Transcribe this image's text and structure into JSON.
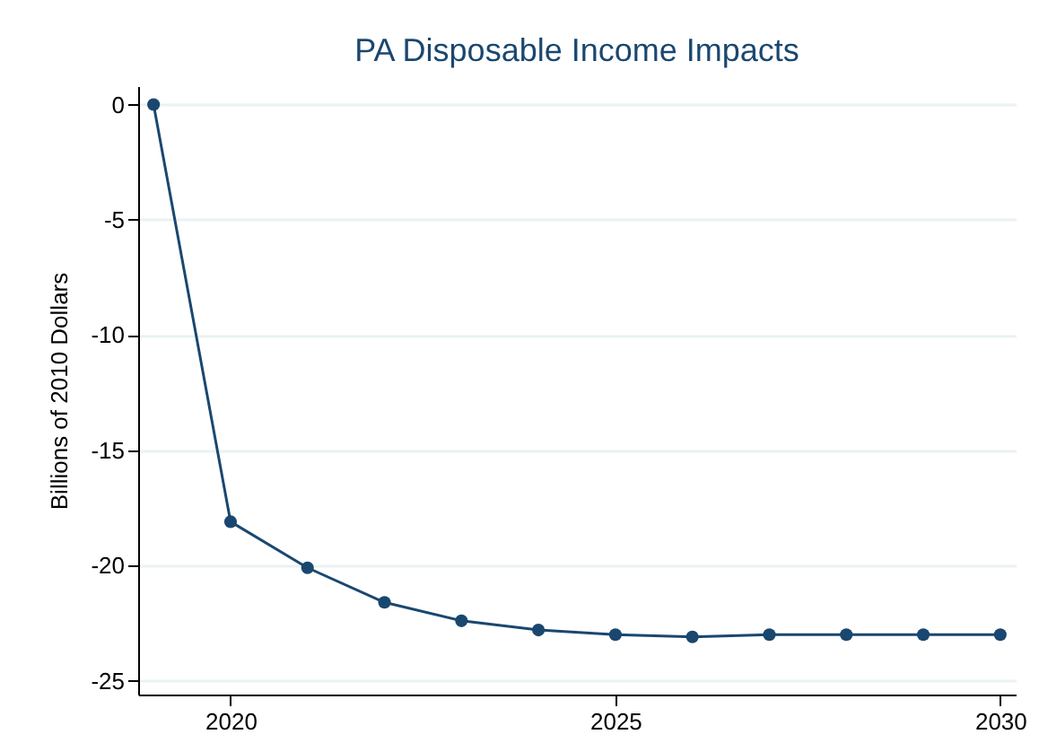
{
  "chart_data": {
    "type": "line",
    "title": "PA Disposable Income Impacts",
    "ylabel": "Billions of 2010 Dollars",
    "x": [
      2019,
      2020,
      2021,
      2022,
      2023,
      2024,
      2025,
      2026,
      2027,
      2028,
      2029,
      2030
    ],
    "series": [
      {
        "color": "#1a476f",
        "values": [
          0,
          -18.1,
          -20.1,
          -21.6,
          -22.4,
          -22.8,
          -23.0,
          -23.1,
          -23.0,
          -23.0,
          -23.0,
          -23.0
        ]
      }
    ],
    "xlim": [
      2018.8,
      2030.2
    ],
    "xticks": [
      2020,
      2025,
      2030
    ],
    "ylim": [
      -25.6,
      0.8
    ],
    "yticks": [
      0,
      -5,
      -10,
      -15,
      -20,
      -25
    ],
    "grid": "y",
    "marker": "circle",
    "legend": false
  }
}
